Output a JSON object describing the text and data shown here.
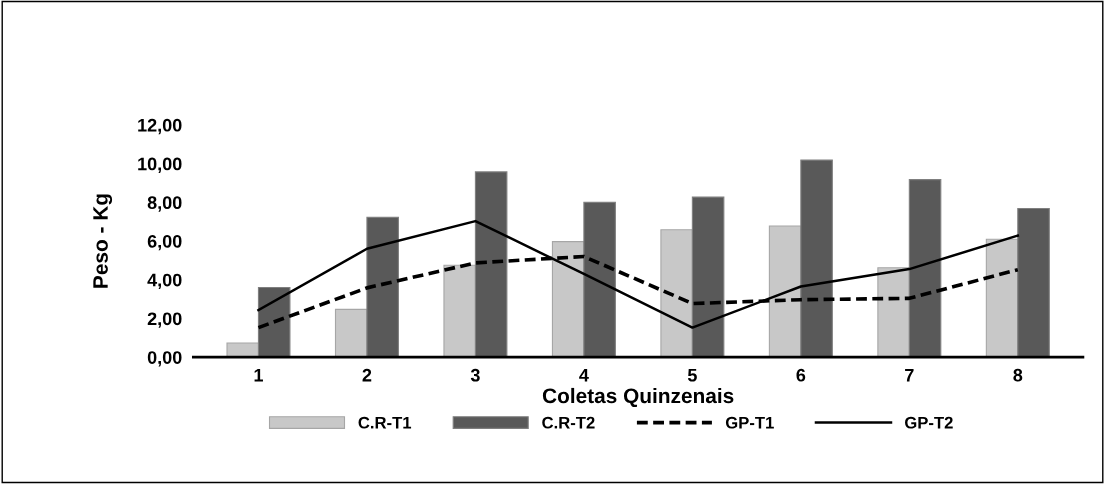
{
  "chart_data": {
    "type": "bar",
    "xlabel": "Coletas Quinzenais",
    "ylabel": "Peso - Kg",
    "categories": [
      "1",
      "2",
      "3",
      "4",
      "5",
      "6",
      "7",
      "8"
    ],
    "series": [
      {
        "name": "C.R-T1",
        "color": "#c8c8c8",
        "values": [
          0.73,
          2.47,
          4.75,
          5.97,
          6.58,
          6.78,
          4.62,
          6.09
        ]
      },
      {
        "name": "C.R-T2",
        "color": "#595959",
        "values": [
          3.6,
          7.22,
          9.57,
          8.0,
          8.27,
          10.18,
          9.17,
          7.68
        ]
      },
      {
        "name": "GP-T1",
        "type": "line",
        "color": "#000000",
        "line_style": "dashed",
        "values": [
          1.53,
          3.58,
          4.87,
          5.2,
          2.77,
          2.97,
          3.04,
          4.52
        ]
      },
      {
        "name": "GP-T2",
        "type": "line",
        "color": "#000000",
        "line_style": "solid",
        "values": [
          2.43,
          5.6,
          7.03,
          4.3,
          1.53,
          3.65,
          4.55,
          6.28
        ]
      }
    ],
    "ylim": [
      0,
      12
    ],
    "yticks": [
      {
        "value": 0,
        "label": "0,00"
      },
      {
        "value": 2,
        "label": "2,00"
      },
      {
        "value": 4,
        "label": "4,00"
      },
      {
        "value": 6,
        "label": "6,00"
      },
      {
        "value": 8,
        "label": "8,00"
      },
      {
        "value": 10,
        "label": "10,00"
      },
      {
        "value": 12,
        "label": "12,00"
      }
    ],
    "grid": false,
    "legend": "bottom",
    "marker": "none"
  }
}
